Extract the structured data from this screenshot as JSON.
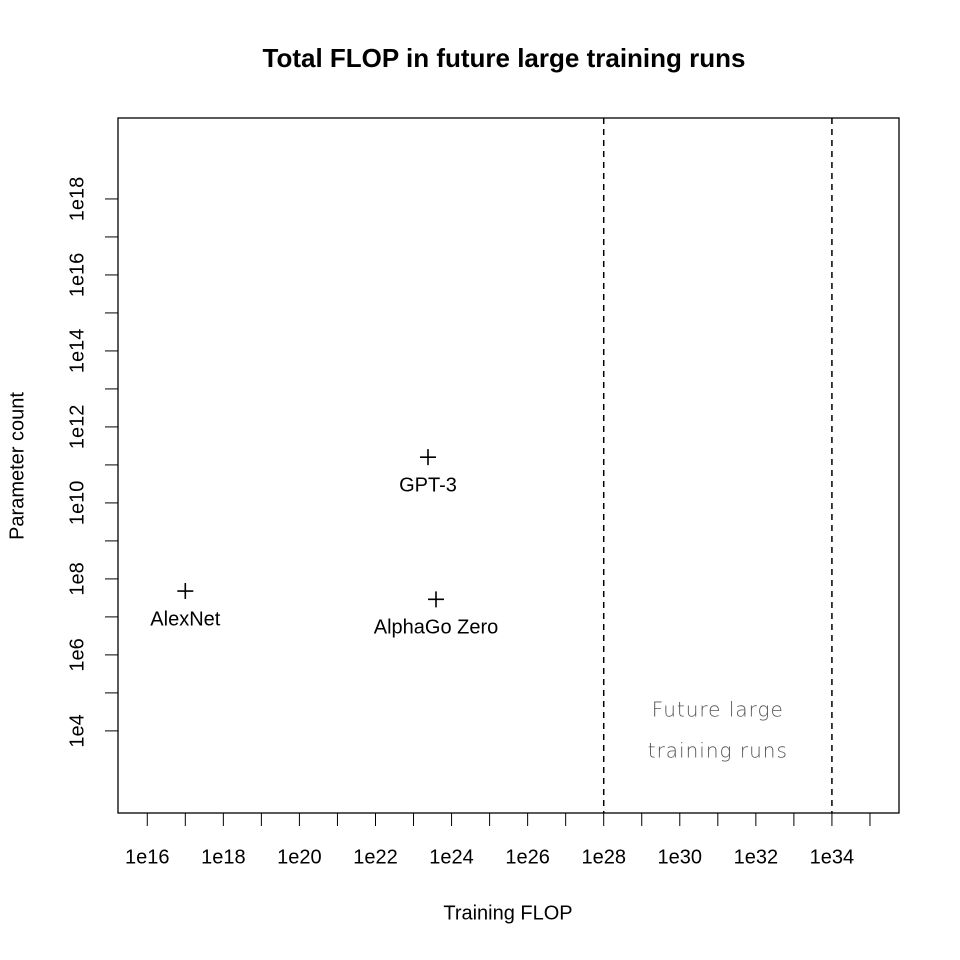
{
  "chart_data": {
    "type": "scatter",
    "title": "Total FLOP in future large training runs",
    "xlabel": "Training FLOP",
    "ylabel": "Parameter count",
    "log_x": true,
    "log_y": true,
    "xlim": [
      1700000000000000.0,
      5.8e+35
    ],
    "ylim": [
      69,
      1.35e+20
    ],
    "xticks": [
      {
        "value": 1e+16,
        "label": "1e16"
      },
      {
        "value": 1e+18,
        "label": "1e18"
      },
      {
        "value": 1e+20,
        "label": "1e20"
      },
      {
        "value": 1e+22,
        "label": "1e22"
      },
      {
        "value": 1e+24,
        "label": "1e24"
      },
      {
        "value": 1e+26,
        "label": "1e26"
      },
      {
        "value": 1e+28,
        "label": "1e28"
      },
      {
        "value": 1e+30,
        "label": "1e30"
      },
      {
        "value": 1e+32,
        "label": "1e32"
      },
      {
        "value": 1e+34,
        "label": "1e34"
      }
    ],
    "x_minor_ticks": [
      1e+17,
      1e+19,
      1e+21,
      1e+23,
      1e+25,
      1e+27,
      1e+29,
      1e+31,
      1e+33,
      1e+35
    ],
    "yticks": [
      {
        "value": 10000.0,
        "label": "1e4"
      },
      {
        "value": 1000000.0,
        "label": "1e6"
      },
      {
        "value": 100000000.0,
        "label": "1e8"
      },
      {
        "value": 10000000000.0,
        "label": "1e10"
      },
      {
        "value": 1000000000000.0,
        "label": "1e12"
      },
      {
        "value": 100000000000000.0,
        "label": "1e14"
      },
      {
        "value": 1e+16,
        "label": "1e16"
      },
      {
        "value": 1e+18,
        "label": "1e18"
      }
    ],
    "y_minor_ticks": [
      100000.0,
      10000000.0,
      1000000000.0,
      100000000000.0,
      10000000000000.0,
      1000000000000000.0,
      1e+17
    ],
    "x": [
      1e+17,
      2.4e+23,
      3.9e+23
    ],
    "values": [
      48000000.0,
      160000000000.0,
      29000000.0
    ],
    "labels": [
      "AlexNet",
      "GPT-3",
      "AlphaGo Zero"
    ],
    "color": "#000000",
    "vlines": [
      1e+28,
      1e+34
    ],
    "annotation": [
      "Future large",
      "training runs"
    ]
  }
}
